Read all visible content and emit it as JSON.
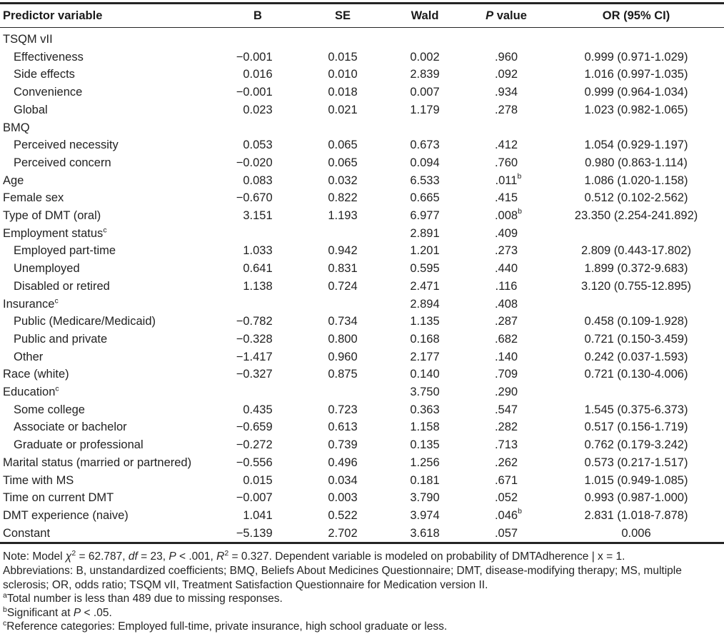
{
  "table": {
    "headers": [
      {
        "label": "Predictor variable"
      },
      {
        "label": "B"
      },
      {
        "label": "SE"
      },
      {
        "label": "Wald"
      },
      {
        "label": "P value",
        "italic_first": true
      },
      {
        "label": "OR (95% CI)"
      }
    ],
    "rows": [
      {
        "label": "TSQM vII",
        "indent": 0,
        "b": "",
        "se": "",
        "wald": "",
        "p": "",
        "or": ""
      },
      {
        "label": "Effectiveness",
        "indent": 1,
        "b": "−0.001",
        "se": "0.015",
        "wald": "0.002",
        "p": ".960",
        "or": "0.999 (0.971-1.029)"
      },
      {
        "label": "Side effects",
        "indent": 1,
        "b": "0.016",
        "se": "0.010",
        "wald": "2.839",
        "p": ".092",
        "or": "1.016 (0.997-1.035)"
      },
      {
        "label": "Convenience",
        "indent": 1,
        "b": "−0.001",
        "se": "0.018",
        "wald": "0.007",
        "p": ".934",
        "or": "0.999 (0.964-1.034)"
      },
      {
        "label": "Global",
        "indent": 1,
        "b": "0.023",
        "se": "0.021",
        "wald": "1.179",
        "p": ".278",
        "or": "1.023 (0.982-1.065)"
      },
      {
        "label": "BMQ",
        "indent": 0,
        "b": "",
        "se": "",
        "wald": "",
        "p": "",
        "or": ""
      },
      {
        "label": "Perceived necessity",
        "indent": 1,
        "b": "0.053",
        "se": "0.065",
        "wald": "0.673",
        "p": ".412",
        "or": "1.054 (0.929-1.197)"
      },
      {
        "label": "Perceived concern",
        "indent": 1,
        "b": "−0.020",
        "se": "0.065",
        "wald": "0.094",
        "p": ".760",
        "or": "0.980 (0.863-1.114)"
      },
      {
        "label": "Age",
        "indent": 0,
        "b": "0.083",
        "se": "0.032",
        "wald": "6.533",
        "p": ".011",
        "p_sup": "b",
        "or": "1.086 (1.020-1.158)"
      },
      {
        "label": "Female sex",
        "indent": 0,
        "b": "−0.670",
        "se": "0.822",
        "wald": "0.665",
        "p": ".415",
        "or": "0.512 (0.102-2.562)"
      },
      {
        "label": "Type of DMT (oral)",
        "indent": 0,
        "b": "3.151",
        "se": "1.193",
        "wald": "6.977",
        "p": ".008",
        "p_sup": "b",
        "or": "23.350 (2.254-241.892)"
      },
      {
        "label": "Employment status",
        "label_sup": "c",
        "indent": 0,
        "b": "",
        "se": "",
        "wald": "2.891",
        "p": ".409",
        "or": ""
      },
      {
        "label": "Employed part-time",
        "indent": 1,
        "b": "1.033",
        "se": "0.942",
        "wald": "1.201",
        "p": ".273",
        "or": "2.809 (0.443-17.802)"
      },
      {
        "label": "Unemployed",
        "indent": 1,
        "b": "0.641",
        "se": "0.831",
        "wald": "0.595",
        "p": ".440",
        "or": "1.899 (0.372-9.683)"
      },
      {
        "label": "Disabled or retired",
        "indent": 1,
        "b": "1.138",
        "se": "0.724",
        "wald": "2.471",
        "p": ".116",
        "or": "3.120 (0.755-12.895)"
      },
      {
        "label": "Insurance",
        "label_sup": "c",
        "indent": 0,
        "b": "",
        "se": "",
        "wald": "2.894",
        "p": ".408",
        "or": ""
      },
      {
        "label": "Public (Medicare/Medicaid)",
        "indent": 1,
        "b": "−0.782",
        "se": "0.734",
        "wald": "1.135",
        "p": ".287",
        "or": "0.458 (0.109-1.928)"
      },
      {
        "label": "Public and private",
        "indent": 1,
        "b": "−0.328",
        "se": "0.800",
        "wald": "0.168",
        "p": ".682",
        "or": "0.721 (0.150-3.459)"
      },
      {
        "label": "Other",
        "indent": 1,
        "b": "−1.417",
        "se": "0.960",
        "wald": "2.177",
        "p": ".140",
        "or": "0.242 (0.037-1.593)"
      },
      {
        "label": "Race (white)",
        "indent": 0,
        "b": "−0.327",
        "se": "0.875",
        "wald": "0.140",
        "p": ".709",
        "or": "0.721 (0.130-4.006)"
      },
      {
        "label": "Education",
        "label_sup": "c",
        "indent": 0,
        "b": "",
        "se": "",
        "wald": "3.750",
        "p": ".290",
        "or": ""
      },
      {
        "label": "Some college",
        "indent": 1,
        "b": "0.435",
        "se": "0.723",
        "wald": "0.363",
        "p": ".547",
        "or": "1.545 (0.375-6.373)"
      },
      {
        "label": "Associate or bachelor",
        "indent": 1,
        "b": "−0.659",
        "se": "0.613",
        "wald": "1.158",
        "p": ".282",
        "or": "0.517 (0.156-1.719)"
      },
      {
        "label": "Graduate or professional",
        "indent": 1,
        "b": "−0.272",
        "se": "0.739",
        "wald": "0.135",
        "p": ".713",
        "or": "0.762 (0.179-3.242)"
      },
      {
        "label": "Marital status (married or partnered)",
        "indent": 0,
        "b": "−0.556",
        "se": "0.496",
        "wald": "1.256",
        "p": ".262",
        "or": "0.573 (0.217-1.517)"
      },
      {
        "label": "Time with MS",
        "indent": 0,
        "b": "0.015",
        "se": "0.034",
        "wald": "0.181",
        "p": ".671",
        "or": "1.015 (0.949-1.085)"
      },
      {
        "label": "Time on current DMT",
        "indent": 0,
        "b": "−0.007",
        "se": "0.003",
        "wald": "3.790",
        "p": ".052",
        "or": "0.993 (0.987-1.000)"
      },
      {
        "label": "DMT experience (naive)",
        "indent": 0,
        "b": "1.041",
        "se": "0.522",
        "wald": "3.974",
        "p": ".046",
        "p_sup": "b",
        "or": "2.831 (1.018-7.878)"
      },
      {
        "label": "Constant",
        "indent": 0,
        "b": "−5.139",
        "se": "2.702",
        "wald": "3.618",
        "p": ".057",
        "or": "0.006"
      }
    ]
  },
  "notes": [
    [
      {
        "t": "Note: Model "
      },
      {
        "t": "χ",
        "i": 1
      },
      {
        "t": "2",
        "sup": 1
      },
      {
        "t": " = 62.787, "
      },
      {
        "t": "df",
        "i": 1
      },
      {
        "t": " = 23, "
      },
      {
        "t": "P",
        "i": 1
      },
      {
        "t": " < .001, "
      },
      {
        "t": "R",
        "i": 1
      },
      {
        "t": "2",
        "sup": 1
      },
      {
        "t": " = 0.327. Dependent variable is modeled on probability of DMTAdherence | x = 1."
      }
    ],
    [
      {
        "t": "Abbreviations: B, unstandardized coefficients; BMQ, Beliefs About Medicines Questionnaire; DMT, disease-modifying therapy; MS, multiple sclerosis; OR, odds ratio; TSQM vII, Treatment Satisfaction Questionnaire for Medication version II."
      }
    ],
    [
      {
        "t": "a",
        "sup": 1
      },
      {
        "t": "Total number is less than 489 due to missing responses."
      }
    ],
    [
      {
        "t": "b",
        "sup": 1
      },
      {
        "t": "Significant at "
      },
      {
        "t": "P",
        "i": 1
      },
      {
        "t": " < .05."
      }
    ],
    [
      {
        "t": "c",
        "sup": 1
      },
      {
        "t": "Reference categories: Employed full-time, private insurance, high school graduate or less."
      }
    ]
  ]
}
